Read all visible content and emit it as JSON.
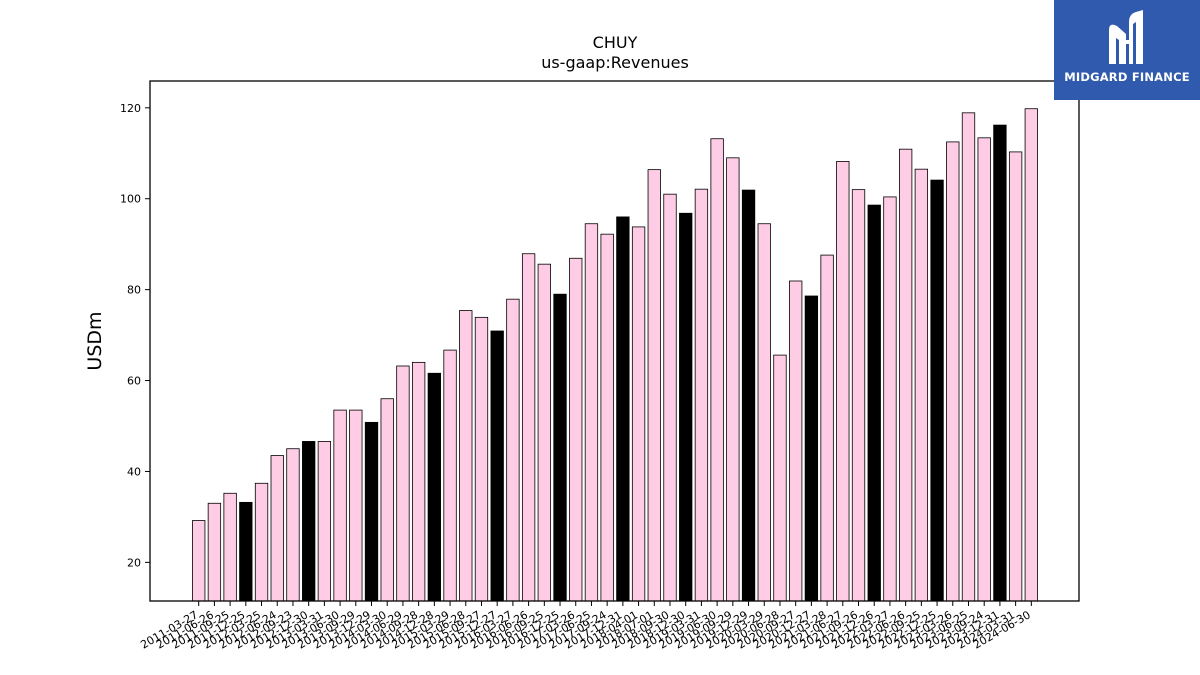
{
  "chart_data": {
    "type": "bar",
    "title": "CHUY",
    "subtitle": "us-gaap:Revenues",
    "xlabel": "",
    "ylabel": "USDm",
    "ylim": [
      11.5,
      125.9
    ],
    "yticks": [
      20,
      40,
      60,
      80,
      100,
      120
    ],
    "grid": false,
    "legend": "none",
    "colors": {
      "quarter": "#ffcce6",
      "annual": "#000000",
      "edge": "#000000"
    },
    "categories": [
      "2011-03-27",
      "2011-06-26",
      "2011-09-25",
      "2011-12-25",
      "2012-03-25",
      "2012-06-24",
      "2012-09-23",
      "2012-12-30",
      "2013-03-31",
      "2013-06-30",
      "2013-09-29",
      "2013-12-29",
      "2014-03-30",
      "2014-06-29",
      "2014-09-28",
      "2014-12-28",
      "2015-03-29",
      "2015-06-28",
      "2015-09-27",
      "2015-12-27",
      "2016-03-27",
      "2016-06-26",
      "2016-09-25",
      "2016-12-25",
      "2017-03-26",
      "2017-06-25",
      "2017-09-24",
      "2017-12-31",
      "2018-04-01",
      "2018-07-01",
      "2018-09-30",
      "2018-12-30",
      "2019-03-31",
      "2019-06-30",
      "2019-09-29",
      "2019-12-29",
      "2020-03-29",
      "2020-06-28",
      "2020-09-27",
      "2020-12-27",
      "2021-03-28",
      "2021-06-27",
      "2021-09-26",
      "2021-12-26",
      "2022-03-27",
      "2022-06-26",
      "2022-09-25",
      "2022-12-25",
      "2023-03-26",
      "2023-06-25",
      "2023-09-24",
      "2023-12-31",
      "2024-03-31",
      "2024-06-30"
    ],
    "values": [
      29.2,
      33.0,
      35.2,
      33.2,
      37.4,
      43.5,
      45.0,
      46.6,
      46.6,
      53.5,
      53.5,
      50.8,
      56.0,
      63.2,
      64.0,
      61.6,
      66.7,
      75.4,
      73.9,
      70.9,
      77.9,
      87.9,
      85.6,
      79.0,
      86.9,
      94.5,
      92.2,
      96.0,
      93.8,
      106.4,
      101.0,
      96.8,
      102.1,
      113.2,
      109.0,
      101.9,
      94.5,
      65.6,
      81.9,
      78.6,
      87.6,
      108.2,
      102.0,
      98.6,
      100.4,
      110.9,
      106.5,
      104.1,
      112.5,
      118.9,
      113.4,
      116.2,
      110.3,
      119.8
    ],
    "annual_flags": [
      0,
      0,
      0,
      1,
      0,
      0,
      0,
      1,
      0,
      0,
      0,
      1,
      0,
      0,
      0,
      1,
      0,
      0,
      0,
      1,
      0,
      0,
      0,
      1,
      0,
      0,
      0,
      1,
      0,
      0,
      0,
      1,
      0,
      0,
      0,
      1,
      0,
      0,
      0,
      1,
      0,
      0,
      0,
      1,
      0,
      0,
      0,
      1,
      0,
      0,
      0,
      1,
      0,
      0
    ]
  },
  "logo": {
    "brand": "MIDGARD FINANCE"
  }
}
